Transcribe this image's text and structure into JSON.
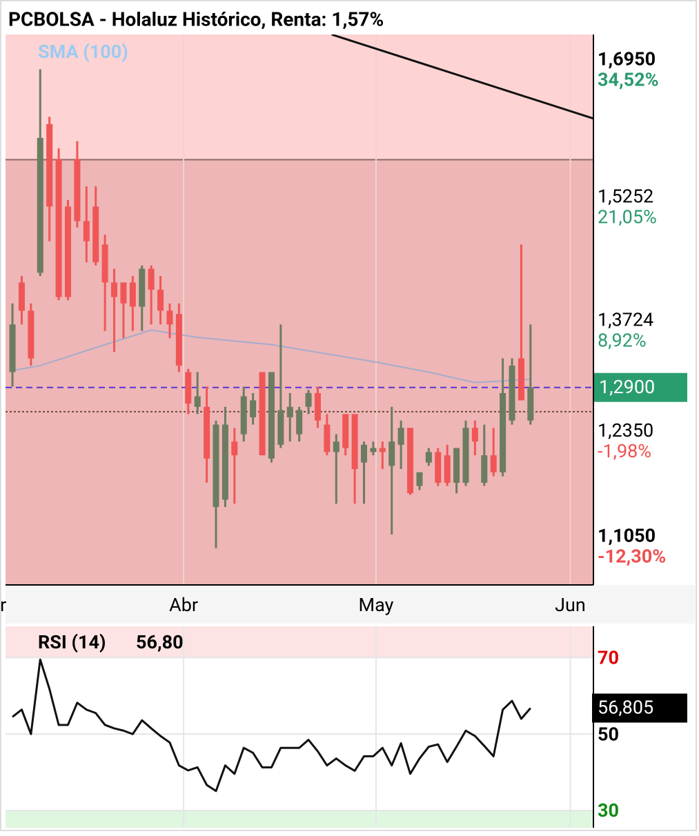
{
  "chart_data": {
    "type": "candlestick",
    "title": "PCBOLSA - Holaluz Histórico, Renta: 1,57%",
    "open": [
      1.309,
      1.42,
      1.385,
      1.432,
      1.616,
      1.573,
      1.514,
      1.573,
      1.496,
      1.514,
      1.467,
      1.42,
      1.42,
      1.42,
      1.39,
      1.437,
      1.411,
      1.385,
      1.381,
      1.309,
      1.266,
      1.266,
      1.142,
      1.151,
      1.223,
      1.232,
      1.253,
      1.309,
      1.202,
      1.219,
      1.253,
      1.232,
      1.266,
      1.283,
      1.244,
      1.21,
      1.257,
      1.257,
      1.197,
      1.21,
      1.215,
      1.193,
      1.219,
      1.24,
      1.168,
      1.197,
      1.21,
      1.206,
      1.172,
      1.172,
      1.24,
      1.172,
      1.206,
      1.185,
      1.249,
      1.326,
      1.249
    ],
    "high": [
      1.394,
      1.428,
      1.394,
      1.684,
      1.625,
      1.586,
      1.522,
      1.595,
      1.539,
      1.539,
      1.479,
      1.437,
      1.42,
      1.428,
      1.441,
      1.441,
      1.428,
      1.394,
      1.394,
      1.313,
      1.309,
      1.291,
      1.249,
      1.266,
      1.24,
      1.291,
      1.283,
      1.309,
      1.309,
      1.368,
      1.283,
      1.266,
      1.287,
      1.291,
      1.257,
      1.232,
      1.257,
      1.257,
      1.223,
      1.223,
      1.223,
      1.266,
      1.249,
      1.24,
      1.185,
      1.215,
      1.215,
      1.219,
      1.215,
      1.249,
      1.249,
      1.244,
      1.24,
      1.326,
      1.326,
      1.467,
      1.368
    ],
    "low": [
      1.291,
      1.368,
      1.317,
      1.428,
      1.471,
      1.398,
      1.398,
      1.488,
      1.445,
      1.441,
      1.36,
      1.334,
      1.351,
      1.36,
      1.36,
      1.368,
      1.368,
      1.351,
      1.309,
      1.257,
      1.257,
      1.172,
      1.091,
      1.142,
      1.146,
      1.223,
      1.244,
      1.206,
      1.197,
      1.215,
      1.223,
      1.223,
      1.257,
      1.24,
      1.206,
      1.146,
      1.206,
      1.146,
      1.146,
      1.206,
      1.189,
      1.108,
      1.189,
      1.157,
      1.163,
      1.193,
      1.168,
      1.168,
      1.159,
      1.168,
      1.206,
      1.168,
      1.18,
      1.18,
      1.244,
      1.274,
      1.244
    ],
    "close": [
      1.368,
      1.385,
      1.326,
      1.599,
      1.514,
      1.402,
      1.402,
      1.496,
      1.471,
      1.445,
      1.42,
      1.402,
      1.394,
      1.39,
      1.437,
      1.411,
      1.385,
      1.368,
      1.317,
      1.27,
      1.279,
      1.202,
      1.244,
      1.244,
      1.206,
      1.279,
      1.274,
      1.206,
      1.309,
      1.262,
      1.266,
      1.262,
      1.283,
      1.249,
      1.21,
      1.223,
      1.215,
      1.189,
      1.219,
      1.215,
      1.21,
      1.223,
      1.24,
      1.159,
      1.185,
      1.21,
      1.172,
      1.172,
      1.215,
      1.24,
      1.223,
      1.206,
      1.185,
      1.283,
      1.317,
      1.274,
      1.29
    ],
    "up_color": "#6b7c60",
    "down_color": "#f05656",
    "xlim": [
      -0.75,
      62.8
    ],
    "xticks": [
      {
        "value": -1,
        "label": "r"
      },
      {
        "value": 18.5,
        "label": "Abr"
      },
      {
        "value": 39.3,
        "label": "May"
      },
      {
        "value": 60.3,
        "label": "Jun"
      }
    ],
    "ylim": [
      1.0455,
      1.727
    ],
    "yticks": [
      {
        "value": 1.695,
        "label": "1,6950"
      },
      {
        "value": 1.5252,
        "label": "1,5252"
      },
      {
        "value": 1.3724,
        "label": "1,3724"
      },
      {
        "value": 1.235,
        "label": "1,2350"
      },
      {
        "value": 1.105,
        "label": "1,1050"
      }
    ],
    "ytick_pcts": [
      "34,52%",
      "21,05%",
      "8,92%",
      "-1,98%",
      "-12,30%"
    ],
    "last_price": {
      "value": 1.29,
      "label": "1,2900"
    },
    "reference_line": 1.26,
    "zone_top": 1.572,
    "sma": {
      "name": "SMA (100)",
      "color": "#a4abcc",
      "label_color": "#9ccbf2",
      "x": [
        0,
        3,
        10,
        15,
        20,
        28,
        39,
        45,
        50,
        56
      ],
      "values": [
        1.311,
        1.317,
        1.343,
        1.361,
        1.352,
        1.343,
        1.322,
        1.309,
        1.296,
        1.3
      ]
    },
    "trendline": {
      "x": [
        34.5,
        62.8
      ],
      "values": [
        1.727,
        1.623
      ]
    },
    "rsi": {
      "title": "RSI (14)",
      "value_label": "56,80",
      "last_label": "56,805",
      "values": [
        54.5,
        56.4,
        50.0,
        69.5,
        61.8,
        52.4,
        52.4,
        58.2,
        56.4,
        55.5,
        52.4,
        51.5,
        50.9,
        50.0,
        53.6,
        51.5,
        49.5,
        47.8,
        41.8,
        40.5,
        41.3,
        36.7,
        35.1,
        41.8,
        39.6,
        46.4,
        45.1,
        41.3,
        41.3,
        46.4,
        46.4,
        46.4,
        48.5,
        45.5,
        41.8,
        43.6,
        41.8,
        40.4,
        44.2,
        44.2,
        46.4,
        41.8,
        47.6,
        39.6,
        43.6,
        46.7,
        47.3,
        42.7,
        46.7,
        50.9,
        49.5,
        46.9,
        44.2,
        56.4,
        58.7,
        54.0,
        56.805
      ],
      "ylim": [
        25.5,
        78.2
      ],
      "yticks": [
        70,
        50,
        30
      ],
      "ytick_colors": [
        "#e00000",
        "#000000",
        "#138a13"
      ]
    }
  }
}
